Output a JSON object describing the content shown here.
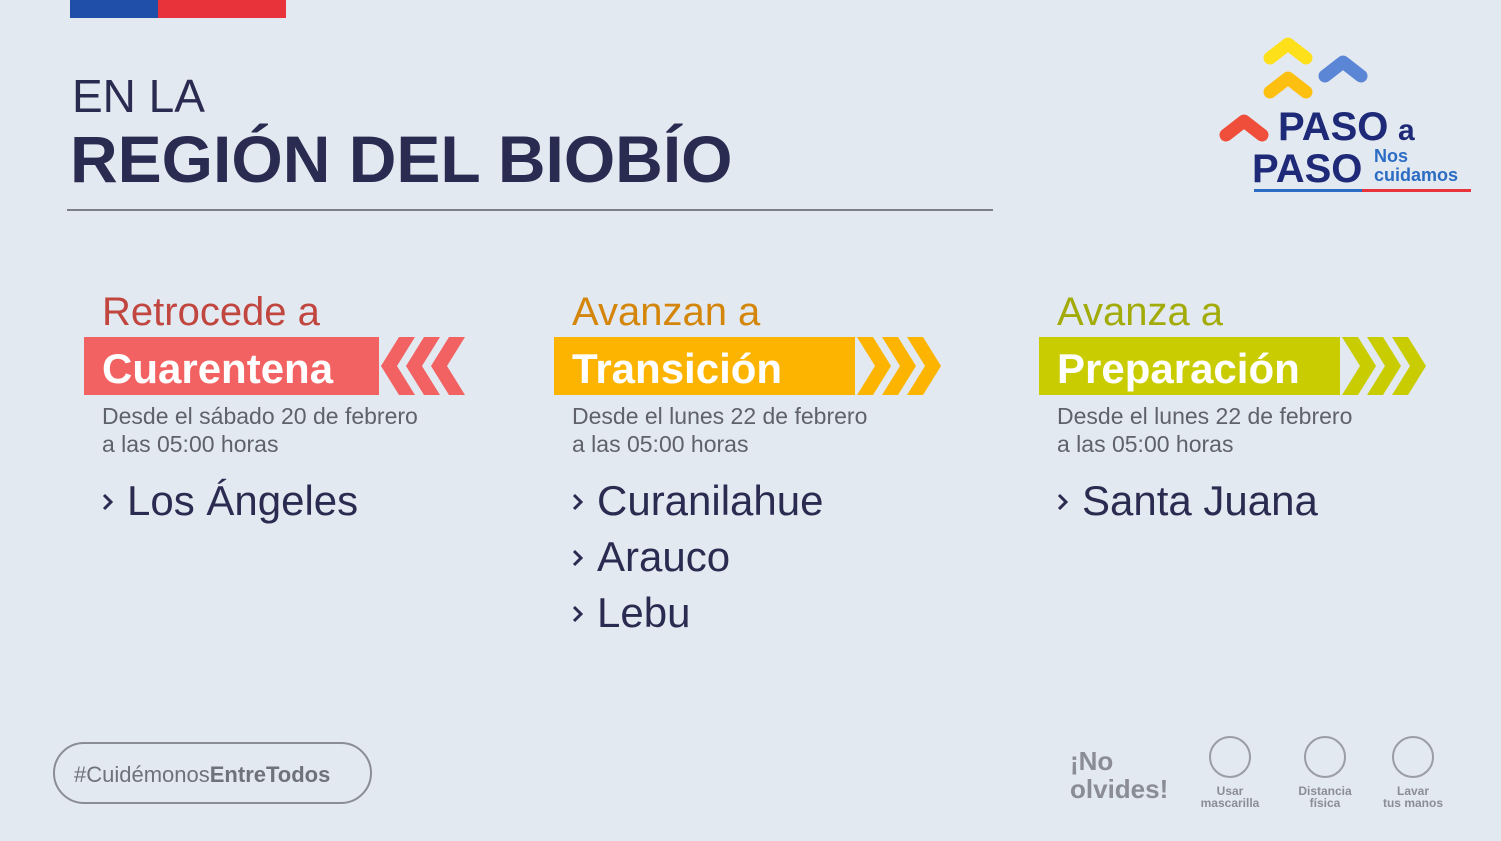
{
  "header": {
    "line1": "EN LA",
    "line2": "REGIÓN DEL BIOBÍO"
  },
  "logo": {
    "word1": "PASO",
    "connector": "a",
    "word2": "PASO",
    "tag1": "Nos",
    "tag2": "cuidamos"
  },
  "columns": [
    {
      "action": "Retrocede a",
      "phase": "Cuarentena",
      "date_line1": "Desde el sábado 20 de febrero",
      "date_line2": "a las 05:00 horas",
      "communes": [
        "Los Ángeles"
      ]
    },
    {
      "action": "Avanzan a",
      "phase": "Transición",
      "date_line1": "Desde el lunes 22 de febrero",
      "date_line2": "a las 05:00 horas",
      "communes": [
        "Curanilahue",
        "Arauco",
        "Lebu"
      ]
    },
    {
      "action": "Avanza a",
      "phase": "Preparación",
      "date_line1": "Desde el lunes 22 de febrero",
      "date_line2": "a las 05:00 horas",
      "communes": [
        "Santa Juana"
      ]
    }
  ],
  "hashtag": {
    "light": "#Cuidémonos",
    "bold": "EntreTodos"
  },
  "reminder": {
    "line1": "¡No",
    "line2": "olvides!",
    "items": [
      {
        "line1": "Usar",
        "line2": "mascarilla"
      },
      {
        "line1": "Distancia",
        "line2": "física"
      },
      {
        "line1": "Lavar",
        "line2": "tus manos"
      }
    ]
  }
}
